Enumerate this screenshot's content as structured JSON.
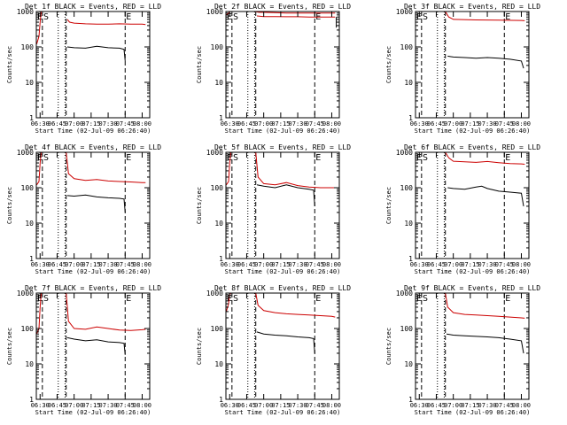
{
  "figure": {
    "ylabel": "Counts/sec",
    "xlabel": "Start Time (02-Jul-09 06:26:40)",
    "y_ticks": [
      "1",
      "10",
      "100",
      "1000"
    ],
    "x_ticks": [
      "06:30",
      "06:45",
      "07:00",
      "07:15",
      "07:30",
      "07:45",
      "08:00"
    ],
    "marker_labels": {
      "E1": "E",
      "S": "S",
      "E2": "E"
    },
    "colors": {
      "events": "#000000",
      "lld": "#cc0000"
    }
  },
  "chart_data": [
    {
      "type": "line",
      "title": "Det 1f BLACK = Events, RED = LLD",
      "xlim": [
        "06:26:40",
        "08:06:40"
      ],
      "ylim": [
        1,
        1000
      ],
      "yscale": "log",
      "markers": {
        "dashed": [
          "06:32",
          "06:53",
          "07:45"
        ],
        "dotted": [
          "06:46",
          "06:52"
        ]
      },
      "series": [
        {
          "x": [
            "06:27",
            "06:29",
            "06:30",
            "06:31",
            "06:32",
            "06:33",
            "06:35",
            "06:40",
            "06:45",
            "06:50",
            "06:52",
            "06:53"
          ],
          "values": [
            120,
            200,
            500,
            1000,
            1000,
            1000,
            1000,
            1000,
            1000,
            1000,
            1000,
            1000
          ]
        },
        {
          "x": [
            "06:54",
            "06:56",
            "07:00",
            "07:10",
            "07:20",
            "07:30",
            "07:40",
            "07:50",
            "08:00",
            "08:03"
          ],
          "values": [
            600,
            500,
            470,
            450,
            440,
            440,
            450,
            440,
            440,
            430
          ]
        },
        {
          "x": [
            "06:54",
            "07:00",
            "07:10",
            "07:20",
            "07:30",
            "07:40",
            "07:44",
            "07:45"
          ],
          "values": [
            100,
            95,
            92,
            105,
            95,
            92,
            85,
            40
          ]
        }
      ]
    },
    {
      "type": "line",
      "title": "Det 2f BLACK = Events, RED = LLD",
      "xlim": [
        "06:26:40",
        "08:06:40"
      ],
      "ylim": [
        1,
        1000
      ],
      "yscale": "log",
      "markers": {
        "dashed": [
          "06:32",
          "06:53",
          "07:45"
        ],
        "dotted": [
          "06:46",
          "06:52"
        ]
      },
      "series": [
        {
          "x": [
            "06:27",
            "06:29",
            "06:30",
            "06:31",
            "06:32",
            "06:35",
            "06:40",
            "06:45",
            "06:48",
            "06:52",
            "06:56",
            "07:00",
            "07:20",
            "07:40",
            "08:00",
            "08:03"
          ],
          "values": [
            800,
            900,
            1000,
            1000,
            1000,
            1000,
            1000,
            1000,
            1000,
            1000,
            950,
            950,
            900,
            900,
            900,
            900
          ]
        },
        {
          "x": [
            "06:54",
            "07:00",
            "07:10",
            "07:20",
            "07:30",
            "07:40",
            "07:45",
            "08:00",
            "08:03"
          ],
          "values": [
            750,
            720,
            720,
            710,
            710,
            700,
            700,
            700,
            700
          ]
        },
        {
          "x": [
            "08:04",
            "08:04"
          ],
          "values": [
            700,
            350
          ]
        }
      ]
    },
    {
      "type": "line",
      "title": "Det 3f BLACK = Events, RED = LLD",
      "xlim": [
        "06:26:40",
        "08:06:40"
      ],
      "ylim": [
        1,
        1000
      ],
      "yscale": "log",
      "markers": {
        "dashed": [
          "06:32",
          "06:53",
          "07:45"
        ],
        "dotted": [
          "06:46",
          "06:52"
        ]
      },
      "series": [
        {
          "x": [
            "06:27",
            "06:29",
            "06:30",
            "06:31",
            "06:32",
            "06:40",
            "06:45",
            "06:52",
            "06:53",
            "06:56",
            "07:00",
            "07:20",
            "07:40",
            "08:00",
            "08:03"
          ],
          "values": [
            1000,
            1000,
            1000,
            1000,
            1000,
            1000,
            1000,
            1000,
            1000,
            700,
            600,
            580,
            570,
            560,
            550
          ]
        },
        {
          "x": [
            "06:55",
            "07:00",
            "07:10",
            "07:20",
            "07:30",
            "07:40",
            "07:50",
            "08:00",
            "08:02"
          ],
          "values": [
            55,
            52,
            50,
            48,
            50,
            48,
            45,
            40,
            25
          ]
        }
      ]
    },
    {
      "type": "line",
      "title": "Det 4f BLACK = Events, RED = LLD",
      "xlim": [
        "06:26:40",
        "08:06:40"
      ],
      "ylim": [
        1,
        1000
      ],
      "yscale": "log",
      "markers": {
        "dashed": [
          "06:32",
          "06:53",
          "07:45"
        ],
        "dotted": [
          "06:46",
          "06:52"
        ]
      },
      "series": [
        {
          "x": [
            "06:27",
            "06:29",
            "06:30",
            "06:31",
            "06:32",
            "06:40",
            "06:45",
            "06:52",
            "06:53",
            "06:55",
            "07:00",
            "07:10",
            "07:20",
            "07:30",
            "07:40",
            "07:50",
            "08:00",
            "08:03"
          ],
          "values": [
            120,
            150,
            500,
            1000,
            1000,
            1000,
            1000,
            1000,
            1000,
            250,
            180,
            160,
            170,
            155,
            150,
            145,
            140,
            140
          ]
        },
        {
          "x": [
            "06:54",
            "07:00",
            "07:10",
            "07:20",
            "07:30",
            "07:40",
            "07:44",
            "07:45"
          ],
          "values": [
            60,
            58,
            62,
            55,
            52,
            50,
            48,
            20
          ]
        }
      ]
    },
    {
      "type": "line",
      "title": "Det 5f BLACK = Events, RED = LLD",
      "xlim": [
        "06:26:40",
        "08:06:40"
      ],
      "ylim": [
        1,
        1000
      ],
      "yscale": "log",
      "markers": {
        "dashed": [
          "06:32",
          "06:53",
          "07:45"
        ],
        "dotted": [
          "06:46",
          "06:52"
        ]
      },
      "series": [
        {
          "x": [
            "06:27",
            "06:29",
            "06:30",
            "06:31",
            "06:32",
            "06:40",
            "06:45",
            "06:52",
            "06:53",
            "06:55",
            "07:00",
            "07:10",
            "07:20",
            "07:30",
            "07:40",
            "07:50",
            "08:00",
            "08:03"
          ],
          "values": [
            120,
            150,
            500,
            1000,
            1000,
            1000,
            1000,
            1000,
            1000,
            200,
            130,
            120,
            140,
            115,
            105,
            100,
            100,
            100
          ]
        },
        {
          "x": [
            "06:54",
            "07:00",
            "07:10",
            "07:20",
            "07:30",
            "07:40",
            "07:44",
            "07:45"
          ],
          "values": [
            120,
            110,
            100,
            120,
            100,
            90,
            85,
            30
          ]
        }
      ]
    },
    {
      "type": "line",
      "title": "Det 6f BLACK = Events, RED = LLD",
      "xlim": [
        "06:26:40",
        "08:06:40"
      ],
      "ylim": [
        1,
        1000
      ],
      "yscale": "log",
      "markers": {
        "dashed": [
          "06:32",
          "06:53",
          "07:45"
        ],
        "dotted": [
          "06:46",
          "06:52"
        ]
      },
      "series": [
        {
          "x": [
            "06:27",
            "06:29",
            "06:30",
            "06:31",
            "06:32",
            "06:40",
            "06:45",
            "06:52",
            "06:53",
            "06:56",
            "07:00",
            "07:10",
            "07:20",
            "07:30",
            "07:40",
            "07:50",
            "08:00",
            "08:03"
          ],
          "values": [
            1000,
            1000,
            1000,
            1000,
            1000,
            1000,
            1000,
            1000,
            1000,
            700,
            560,
            540,
            520,
            550,
            510,
            480,
            470,
            460
          ]
        },
        {
          "x": [
            "06:55",
            "07:00",
            "07:10",
            "07:20",
            "07:25",
            "07:30",
            "07:40",
            "07:50",
            "08:00",
            "08:02"
          ],
          "values": [
            100,
            95,
            90,
            105,
            110,
            95,
            80,
            75,
            70,
            30
          ]
        }
      ]
    },
    {
      "type": "line",
      "title": "Det 7f BLACK = Events, RED = LLD",
      "xlim": [
        "06:26:40",
        "08:06:40"
      ],
      "ylim": [
        1,
        1000
      ],
      "yscale": "log",
      "markers": {
        "dashed": [
          "06:32",
          "06:53",
          "07:45"
        ],
        "dotted": [
          "06:46",
          "06:52"
        ]
      },
      "series": [
        {
          "x": [
            "06:27",
            "06:29",
            "06:30",
            "06:31",
            "06:32",
            "06:40",
            "06:45",
            "06:52",
            "06:53",
            "06:55",
            "07:00",
            "07:10",
            "07:20",
            "07:30",
            "07:40",
            "07:50",
            "08:00",
            "08:03"
          ],
          "values": [
            70,
            100,
            400,
            1000,
            1000,
            1000,
            1000,
            1000,
            1000,
            160,
            100,
            95,
            110,
            100,
            90,
            88,
            92,
            95
          ]
        },
        {
          "x": [
            "06:54",
            "07:00",
            "07:10",
            "07:20",
            "07:30",
            "07:40",
            "07:44",
            "07:45"
          ],
          "values": [
            55,
            50,
            45,
            48,
            42,
            40,
            38,
            18
          ]
        }
      ]
    },
    {
      "type": "line",
      "title": "Det 8f BLACK = Events, RED = LLD",
      "xlim": [
        "06:26:40",
        "08:06:40"
      ],
      "ylim": [
        1,
        1000
      ],
      "yscale": "log",
      "markers": {
        "dashed": [
          "06:32",
          "06:53",
          "07:45"
        ],
        "dotted": [
          "06:46",
          "06:52"
        ]
      },
      "series": [
        {
          "x": [
            "06:27",
            "06:29",
            "06:30",
            "06:31",
            "06:32",
            "06:40",
            "06:45",
            "06:52",
            "06:53",
            "06:55",
            "07:00",
            "07:10",
            "07:20",
            "07:30",
            "07:40",
            "07:50",
            "08:00",
            "08:03"
          ],
          "values": [
            300,
            500,
            900,
            1000,
            1000,
            1000,
            1000,
            1000,
            1000,
            450,
            320,
            280,
            260,
            250,
            240,
            230,
            220,
            210
          ]
        },
        {
          "x": [
            "06:54",
            "07:00",
            "07:10",
            "07:20",
            "07:30",
            "07:40",
            "07:44",
            "07:45"
          ],
          "values": [
            80,
            70,
            65,
            62,
            58,
            55,
            52,
            20
          ]
        }
      ]
    },
    {
      "type": "line",
      "title": "Det 9f BLACK = Events, RED = LLD",
      "xlim": [
        "06:26:40",
        "08:06:40"
      ],
      "ylim": [
        1,
        1000
      ],
      "yscale": "log",
      "markers": {
        "dashed": [
          "06:32",
          "06:53",
          "07:45"
        ],
        "dotted": [
          "06:46",
          "06:52"
        ]
      },
      "series": [
        {
          "x": [
            "06:27",
            "06:29",
            "06:30",
            "06:31",
            "06:32",
            "06:40",
            "06:45",
            "06:52",
            "06:53",
            "06:55",
            "07:00",
            "07:10",
            "07:20",
            "07:30",
            "07:40",
            "07:50",
            "08:00",
            "08:03"
          ],
          "values": [
            1000,
            1000,
            1000,
            1000,
            1000,
            1000,
            1000,
            1000,
            1000,
            400,
            280,
            250,
            240,
            230,
            220,
            210,
            200,
            195
          ]
        },
        {
          "x": [
            "06:54",
            "07:00",
            "07:10",
            "07:20",
            "07:30",
            "07:40",
            "07:50",
            "08:00",
            "08:02"
          ],
          "values": [
            70,
            65,
            62,
            60,
            58,
            55,
            50,
            45,
            20
          ]
        }
      ]
    }
  ]
}
